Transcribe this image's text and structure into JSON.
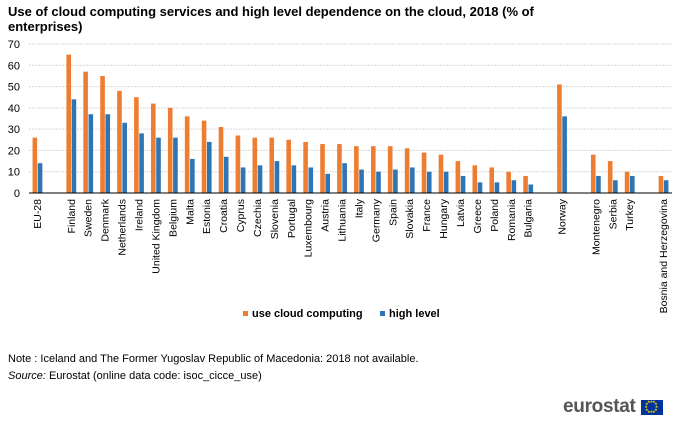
{
  "title": "Use of cloud computing services and high level dependence on the cloud, 2018 (% of enterprises)",
  "note": "Note : Iceland and The Former Yugoslav Republic of Macedonia: 2018 not available.",
  "source_label": "Source:",
  "source_text": " Eurostat (online data code: isoc_cicce_use)",
  "logo_text": "eurostat",
  "colors": {
    "use": "#ED7D31",
    "high": "#2E75B6",
    "grid": "#D9D9D9"
  },
  "chart_data": {
    "type": "bar",
    "ylim": [
      0,
      70
    ],
    "yticks": [
      0,
      10,
      20,
      30,
      40,
      50,
      60,
      70
    ],
    "grid": true,
    "legend": "bottom",
    "categories": [
      "EU-28",
      "",
      "Finland",
      "Sweden",
      "Denmark",
      "Netherlands",
      "Ireland",
      "United Kingdom",
      "Belgium",
      "Malta",
      "Estonia",
      "Croatia",
      "Cyprus",
      "Czechia",
      "Slovenia",
      "Portugal",
      "Luxembourg",
      "Austria",
      "Lithuania",
      "Italy",
      "Germany",
      "Spain",
      "Slovakia",
      "France",
      "Hungary",
      "Latvia",
      "Greece",
      "Poland",
      "Romania",
      "Bulgaria",
      "",
      "Norway",
      "",
      "Montenegro",
      "Serbia",
      "Turkey",
      "",
      "Bosnia and Herzegovina"
    ],
    "series": [
      {
        "name": "use cloud computing",
        "color": "#ED7D31",
        "values": [
          26,
          null,
          65,
          57,
          55,
          48,
          45,
          42,
          40,
          36,
          34,
          31,
          27,
          26,
          26,
          25,
          24,
          23,
          23,
          22,
          22,
          22,
          21,
          19,
          18,
          15,
          13,
          12,
          10,
          8,
          null,
          51,
          null,
          18,
          15,
          10,
          null,
          8
        ]
      },
      {
        "name": "high level",
        "color": "#2E75B6",
        "values": [
          14,
          null,
          44,
          37,
          37,
          33,
          28,
          26,
          26,
          16,
          24,
          17,
          12,
          13,
          15,
          13,
          12,
          9,
          14,
          11,
          10,
          11,
          12,
          10,
          10,
          8,
          5,
          5,
          6,
          4,
          null,
          36,
          null,
          8,
          6,
          8,
          null,
          6
        ]
      }
    ]
  }
}
